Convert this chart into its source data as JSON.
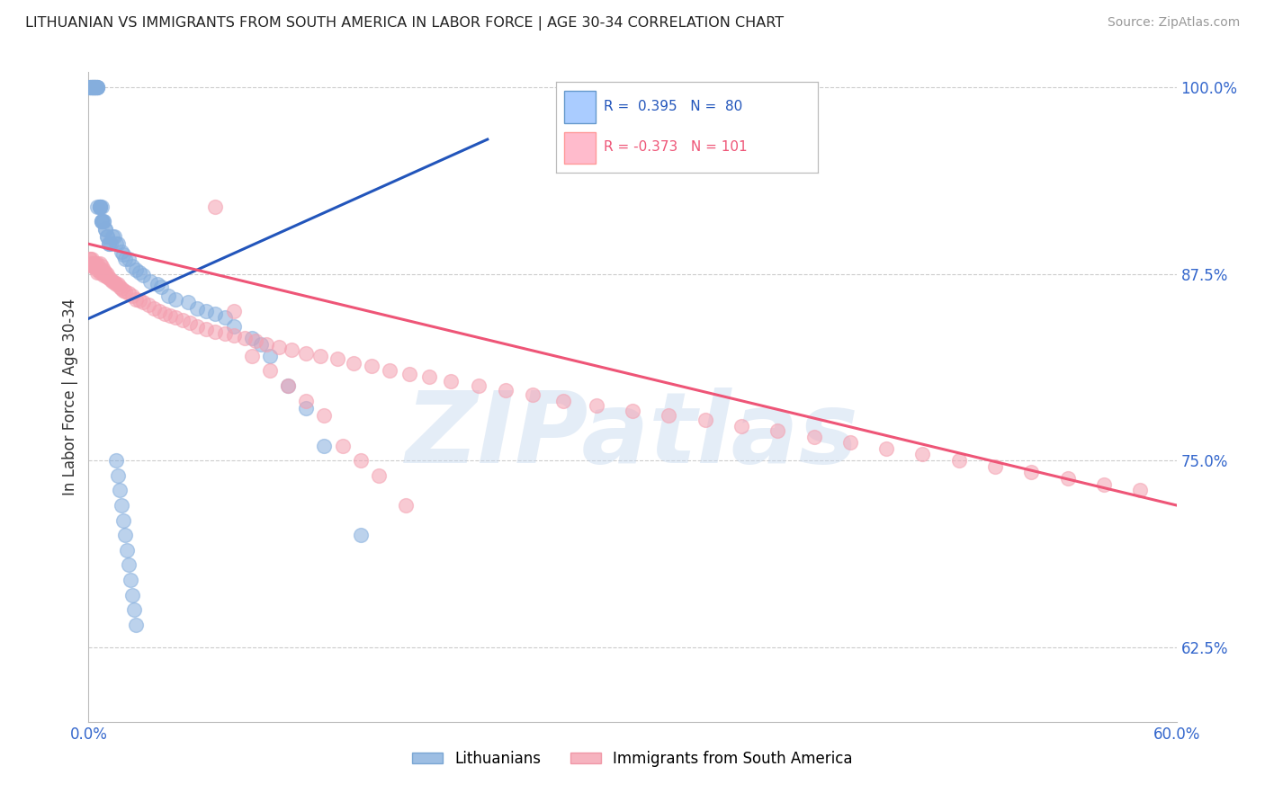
{
  "title": "LITHUANIAN VS IMMIGRANTS FROM SOUTH AMERICA IN LABOR FORCE | AGE 30-34 CORRELATION CHART",
  "source": "Source: ZipAtlas.com",
  "ylabel": "In Labor Force | Age 30-34",
  "xmin": 0.0,
  "xmax": 0.6,
  "ymin": 0.575,
  "ymax": 1.01,
  "yticks": [
    0.625,
    0.75,
    0.875,
    1.0
  ],
  "ytick_labels": [
    "62.5%",
    "75.0%",
    "87.5%",
    "100.0%"
  ],
  "blue_R": 0.395,
  "blue_N": 80,
  "pink_R": -0.373,
  "pink_N": 101,
  "blue_color": "#85AEDD",
  "pink_color": "#F4A0B0",
  "blue_line_color": "#2255BB",
  "pink_line_color": "#EE5577",
  "legend_label_blue": "Lithuanians",
  "legend_label_pink": "Immigrants from South America",
  "watermark": "ZIPatlas",
  "blue_scatter_x": [
    0.001,
    0.001,
    0.001,
    0.002,
    0.002,
    0.002,
    0.002,
    0.003,
    0.003,
    0.003,
    0.003,
    0.003,
    0.004,
    0.004,
    0.004,
    0.004,
    0.005,
    0.005,
    0.005,
    0.005,
    0.005,
    0.006,
    0.006,
    0.006,
    0.006,
    0.007,
    0.007,
    0.007,
    0.007,
    0.008,
    0.008,
    0.009,
    0.009,
    0.01,
    0.01,
    0.011,
    0.011,
    0.012,
    0.013,
    0.014,
    0.015,
    0.016,
    0.018,
    0.019,
    0.02,
    0.022,
    0.024,
    0.026,
    0.028,
    0.03,
    0.034,
    0.038,
    0.04,
    0.044,
    0.048,
    0.055,
    0.06,
    0.065,
    0.07,
    0.075,
    0.08,
    0.09,
    0.095,
    0.1,
    0.11,
    0.12,
    0.13,
    0.15,
    0.015,
    0.016,
    0.017,
    0.018,
    0.019,
    0.02,
    0.021,
    0.022,
    0.023,
    0.024,
    0.025,
    0.026
  ],
  "blue_scatter_y": [
    1.0,
    1.0,
    1.0,
    1.0,
    1.0,
    1.0,
    1.0,
    1.0,
    1.0,
    1.0,
    1.0,
    1.0,
    1.0,
    1.0,
    1.0,
    1.0,
    1.0,
    1.0,
    1.0,
    1.0,
    0.92,
    0.92,
    0.92,
    0.92,
    0.92,
    0.92,
    0.91,
    0.91,
    0.91,
    0.91,
    0.91,
    0.905,
    0.905,
    0.9,
    0.9,
    0.895,
    0.895,
    0.895,
    0.9,
    0.9,
    0.895,
    0.895,
    0.89,
    0.888,
    0.885,
    0.885,
    0.88,
    0.878,
    0.876,
    0.874,
    0.87,
    0.868,
    0.866,
    0.86,
    0.858,
    0.856,
    0.852,
    0.85,
    0.848,
    0.846,
    0.84,
    0.832,
    0.828,
    0.82,
    0.8,
    0.785,
    0.76,
    0.7,
    0.75,
    0.74,
    0.73,
    0.72,
    0.71,
    0.7,
    0.69,
    0.68,
    0.67,
    0.66,
    0.65,
    0.64
  ],
  "pink_scatter_x": [
    0.001,
    0.001,
    0.002,
    0.002,
    0.002,
    0.003,
    0.003,
    0.003,
    0.004,
    0.004,
    0.004,
    0.005,
    0.005,
    0.005,
    0.005,
    0.006,
    0.006,
    0.006,
    0.007,
    0.007,
    0.007,
    0.008,
    0.008,
    0.008,
    0.009,
    0.009,
    0.01,
    0.01,
    0.011,
    0.012,
    0.013,
    0.014,
    0.015,
    0.016,
    0.017,
    0.018,
    0.019,
    0.02,
    0.022,
    0.024,
    0.026,
    0.028,
    0.03,
    0.033,
    0.036,
    0.039,
    0.042,
    0.045,
    0.048,
    0.052,
    0.056,
    0.06,
    0.065,
    0.07,
    0.075,
    0.08,
    0.086,
    0.092,
    0.098,
    0.105,
    0.112,
    0.12,
    0.128,
    0.137,
    0.146,
    0.156,
    0.166,
    0.177,
    0.188,
    0.2,
    0.215,
    0.23,
    0.245,
    0.262,
    0.28,
    0.3,
    0.32,
    0.34,
    0.36,
    0.38,
    0.4,
    0.42,
    0.44,
    0.46,
    0.48,
    0.5,
    0.52,
    0.54,
    0.56,
    0.58,
    0.07,
    0.08,
    0.09,
    0.1,
    0.11,
    0.12,
    0.13,
    0.14,
    0.15,
    0.16,
    0.175
  ],
  "pink_scatter_y": [
    0.885,
    0.885,
    0.885,
    0.882,
    0.88,
    0.882,
    0.88,
    0.88,
    0.882,
    0.88,
    0.88,
    0.882,
    0.88,
    0.878,
    0.876,
    0.882,
    0.878,
    0.876,
    0.88,
    0.878,
    0.876,
    0.878,
    0.876,
    0.874,
    0.876,
    0.874,
    0.875,
    0.873,
    0.872,
    0.871,
    0.87,
    0.869,
    0.868,
    0.868,
    0.866,
    0.865,
    0.864,
    0.863,
    0.862,
    0.86,
    0.858,
    0.857,
    0.856,
    0.854,
    0.852,
    0.85,
    0.848,
    0.847,
    0.846,
    0.844,
    0.842,
    0.84,
    0.838,
    0.836,
    0.835,
    0.834,
    0.832,
    0.83,
    0.828,
    0.826,
    0.824,
    0.822,
    0.82,
    0.818,
    0.815,
    0.813,
    0.81,
    0.808,
    0.806,
    0.803,
    0.8,
    0.797,
    0.794,
    0.79,
    0.787,
    0.783,
    0.78,
    0.777,
    0.773,
    0.77,
    0.766,
    0.762,
    0.758,
    0.754,
    0.75,
    0.746,
    0.742,
    0.738,
    0.734,
    0.73,
    0.92,
    0.85,
    0.82,
    0.81,
    0.8,
    0.79,
    0.78,
    0.76,
    0.75,
    0.74,
    0.72
  ],
  "blue_line_x": [
    0.0,
    0.22
  ],
  "blue_line_y": [
    0.845,
    0.965
  ],
  "pink_line_x": [
    0.0,
    0.6
  ],
  "pink_line_y": [
    0.895,
    0.72
  ]
}
